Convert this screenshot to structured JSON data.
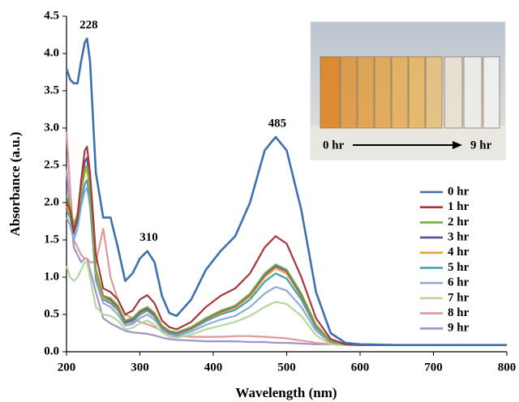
{
  "chart_data": {
    "type": "line",
    "x_label": "Wavelength (nm)",
    "y_label": "Absorbance (a.u.)",
    "x": [
      200,
      205,
      210,
      215,
      220,
      225,
      228,
      232,
      240,
      250,
      260,
      270,
      280,
      290,
      300,
      310,
      320,
      330,
      340,
      350,
      370,
      390,
      410,
      430,
      450,
      470,
      485,
      500,
      520,
      540,
      560,
      580,
      600,
      650,
      700,
      750,
      800
    ],
    "xlim": [
      200,
      800
    ],
    "xticks": [
      200,
      300,
      400,
      500,
      600,
      700,
      800
    ],
    "ylim": [
      0,
      4.5
    ],
    "yticks": [
      {
        "value": 0,
        "label": "0.0"
      },
      {
        "value": 0.5,
        "label": "0.5"
      },
      {
        "value": 1,
        "label": "1.0"
      },
      {
        "value": 1.5,
        "label": "1.5"
      },
      {
        "value": 2,
        "label": "2.0"
      },
      {
        "value": 2.5,
        "label": "2.5"
      },
      {
        "value": 3,
        "label": "3.0"
      },
      {
        "value": 3.5,
        "label": "3.5"
      },
      {
        "value": 4,
        "label": "4.0"
      },
      {
        "value": 4.5,
        "label": "4.5"
      }
    ],
    "legend": "right",
    "annotations": [
      "228",
      "310",
      "485"
    ],
    "inset_labels": [
      "0 hr",
      "9 hr"
    ],
    "series": [
      {
        "name": "0 hr",
        "color": "#3e6fb0",
        "values": [
          3.8,
          3.65,
          3.6,
          3.6,
          3.9,
          4.15,
          4.2,
          3.9,
          2.4,
          1.8,
          1.8,
          1.4,
          0.95,
          1.05,
          1.25,
          1.35,
          1.2,
          0.75,
          0.52,
          0.48,
          0.7,
          1.1,
          1.35,
          1.55,
          2.0,
          2.7,
          2.88,
          2.7,
          1.9,
          0.8,
          0.25,
          0.12,
          0.1,
          0.09,
          0.09,
          0.09,
          0.09
        ]
      },
      {
        "name": "1 hr",
        "color": "#a9373a",
        "values": [
          2.0,
          1.9,
          1.6,
          1.8,
          2.3,
          2.7,
          2.75,
          2.4,
          1.3,
          0.85,
          0.8,
          0.7,
          0.5,
          0.55,
          0.7,
          0.76,
          0.65,
          0.42,
          0.33,
          0.3,
          0.4,
          0.6,
          0.75,
          0.85,
          1.05,
          1.4,
          1.55,
          1.45,
          1.0,
          0.45,
          0.17,
          0.1,
          0.09,
          0.09,
          0.09,
          0.09,
          0.09
        ]
      },
      {
        "name": "2 hr",
        "color": "#77a845",
        "values": [
          2.1,
          1.95,
          1.7,
          1.85,
          2.2,
          2.45,
          2.5,
          2.2,
          1.1,
          0.75,
          0.72,
          0.62,
          0.42,
          0.45,
          0.55,
          0.6,
          0.52,
          0.35,
          0.28,
          0.26,
          0.33,
          0.45,
          0.55,
          0.62,
          0.78,
          1.05,
          1.17,
          1.1,
          0.78,
          0.36,
          0.14,
          0.1,
          0.09,
          0.09,
          0.09,
          0.09,
          0.09
        ]
      },
      {
        "name": "3 hr",
        "color": "#654b94",
        "values": [
          2.05,
          1.9,
          1.68,
          1.85,
          2.25,
          2.55,
          2.6,
          2.25,
          1.1,
          0.75,
          0.7,
          0.6,
          0.4,
          0.43,
          0.53,
          0.58,
          0.5,
          0.34,
          0.27,
          0.25,
          0.32,
          0.44,
          0.54,
          0.61,
          0.77,
          1.03,
          1.15,
          1.08,
          0.76,
          0.35,
          0.14,
          0.1,
          0.09,
          0.09,
          0.09,
          0.09,
          0.09
        ]
      },
      {
        "name": "4 hr",
        "color": "#f39b3a",
        "values": [
          1.95,
          1.85,
          1.62,
          1.8,
          2.15,
          2.4,
          2.45,
          2.15,
          1.05,
          0.72,
          0.68,
          0.58,
          0.39,
          0.42,
          0.52,
          0.57,
          0.49,
          0.33,
          0.26,
          0.24,
          0.31,
          0.43,
          0.52,
          0.59,
          0.74,
          1.0,
          1.12,
          1.05,
          0.74,
          0.34,
          0.13,
          0.1,
          0.09,
          0.09,
          0.09,
          0.09,
          0.09
        ]
      },
      {
        "name": "5 hr",
        "color": "#3aa2b6",
        "values": [
          1.9,
          1.8,
          1.58,
          1.75,
          2.05,
          2.25,
          2.3,
          2.05,
          1.0,
          0.7,
          0.65,
          0.56,
          0.38,
          0.4,
          0.5,
          0.55,
          0.47,
          0.32,
          0.25,
          0.23,
          0.3,
          0.41,
          0.5,
          0.56,
          0.7,
          0.94,
          1.05,
          0.98,
          0.7,
          0.32,
          0.13,
          0.1,
          0.09,
          0.09,
          0.09,
          0.09,
          0.09
        ]
      },
      {
        "name": "6 hr",
        "color": "#93a9d6",
        "values": [
          1.8,
          1.7,
          1.5,
          1.65,
          1.95,
          2.15,
          2.2,
          1.95,
          0.95,
          0.65,
          0.6,
          0.5,
          0.35,
          0.37,
          0.45,
          0.5,
          0.43,
          0.3,
          0.23,
          0.21,
          0.27,
          0.36,
          0.43,
          0.48,
          0.6,
          0.78,
          0.87,
          0.82,
          0.6,
          0.28,
          0.12,
          0.1,
          0.09,
          0.09,
          0.09,
          0.09,
          0.09
        ]
      },
      {
        "name": "7 hr",
        "color": "#b5d89a",
        "values": [
          1.15,
          1.0,
          0.95,
          1.0,
          1.1,
          1.2,
          1.2,
          1.0,
          0.6,
          0.5,
          0.48,
          0.42,
          0.3,
          0.32,
          0.38,
          0.42,
          0.36,
          0.26,
          0.2,
          0.19,
          0.23,
          0.3,
          0.35,
          0.4,
          0.48,
          0.6,
          0.67,
          0.64,
          0.48,
          0.22,
          0.1,
          0.09,
          0.09,
          0.09,
          0.09,
          0.09,
          0.09
        ]
      },
      {
        "name": "8 hr",
        "color": "#dd9a98",
        "values": [
          2.95,
          2.2,
          1.5,
          1.4,
          1.3,
          1.25,
          1.25,
          1.2,
          1.2,
          1.65,
          1.0,
          0.7,
          0.5,
          0.45,
          0.4,
          0.37,
          0.33,
          0.28,
          0.24,
          0.22,
          0.2,
          0.2,
          0.2,
          0.21,
          0.21,
          0.2,
          0.19,
          0.18,
          0.15,
          0.12,
          0.1,
          0.09,
          0.09,
          0.09,
          0.09,
          0.09,
          0.09
        ]
      },
      {
        "name": "9 hr",
        "color": "#a193c8",
        "values": [
          2.45,
          1.9,
          1.4,
          1.3,
          1.2,
          1.25,
          1.25,
          1.1,
          0.8,
          0.45,
          0.38,
          0.33,
          0.28,
          0.26,
          0.25,
          0.24,
          0.22,
          0.19,
          0.17,
          0.16,
          0.15,
          0.14,
          0.14,
          0.14,
          0.13,
          0.13,
          0.12,
          0.12,
          0.11,
          0.1,
          0.1,
          0.09,
          0.09,
          0.09,
          0.09,
          0.09,
          0.09
        ]
      }
    ]
  }
}
